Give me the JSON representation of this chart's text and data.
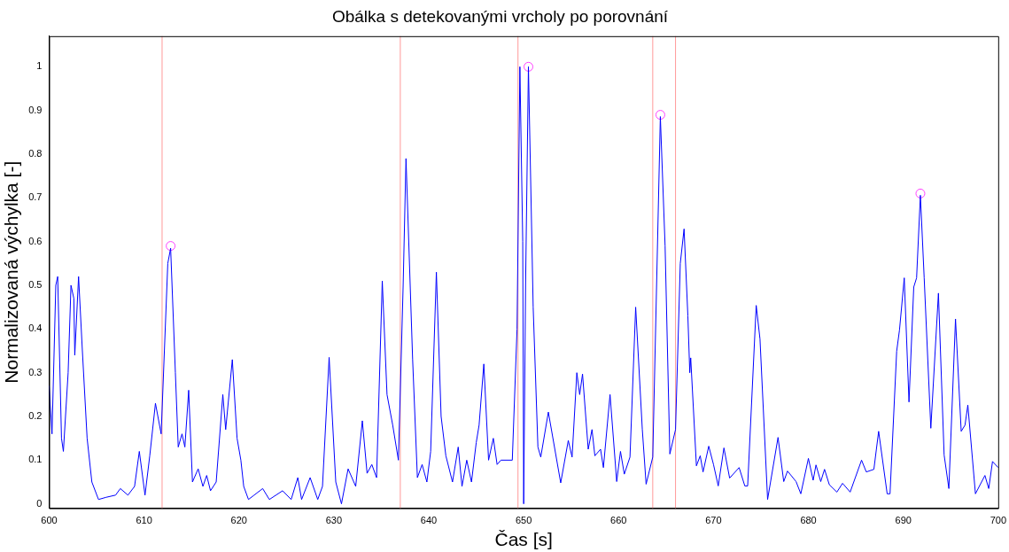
{
  "chart_data": {
    "type": "line",
    "title": "Obálka s detekovanými vrcholy po porovnání",
    "xlabel": "Čas [s]",
    "ylabel": "Normalizovaná výchylka [-]",
    "xlim": [
      600,
      700
    ],
    "xticks": [
      600,
      610,
      620,
      630,
      640,
      650,
      660,
      670,
      680,
      690,
      700
    ],
    "ylim": [
      -0.01,
      1.07
    ],
    "yticks": [
      0,
      0.1,
      0.2,
      0.3,
      0.4,
      0.5,
      0.6,
      0.7,
      0.8,
      0.9,
      1
    ],
    "grid": false,
    "legend": false,
    "marker": "none",
    "line_style": "solid",
    "series": [
      {
        "color": "#0000ff",
        "x": [
          600,
          600.3,
          600.7,
          600.9,
          601.3,
          601.5,
          602,
          602.3,
          602.6,
          602.7,
          603.1,
          603.5,
          604,
          604.5,
          605.2,
          606,
          607,
          607.5,
          608.3,
          609,
          609.5,
          610.1,
          610.6,
          611.2,
          611.8,
          612.5,
          612.8,
          613.3,
          613.6,
          614,
          614.3,
          614.7,
          615.1,
          615.7,
          616.2,
          616.6,
          617,
          617.6,
          618.3,
          618.6,
          619.3,
          619.8,
          620.2,
          620.5,
          621,
          621.6,
          622.5,
          623.2,
          624.6,
          625.5,
          626.2,
          626.6,
          627.5,
          628.3,
          628.8,
          629.5,
          630.2,
          630.8,
          631.5,
          632.3,
          633,
          633.5,
          634,
          634.5,
          635.1,
          635.6,
          636.2,
          636.8,
          637.3,
          637.6,
          638.3,
          638.8,
          639.3,
          639.8,
          640.2,
          640.8,
          641.3,
          641.8,
          642.5,
          643.1,
          643.5,
          644,
          644.5,
          645,
          645.3,
          645.8,
          646.3,
          646.8,
          647.2,
          647.6,
          648.8,
          649.3,
          649.6,
          649.9,
          650,
          650.2,
          650.5,
          651,
          651.5,
          651.8,
          652.6,
          653.9,
          654.7,
          655.1,
          655.6,
          655.9,
          656.2,
          656.8,
          657.2,
          657.5,
          658.1,
          658.4,
          659.1,
          659.8,
          660.2,
          660.6,
          661.2,
          661.8,
          662.5,
          662.9,
          663.6,
          664.4,
          664.9,
          665.4,
          666,
          666.5,
          666.9,
          667.3,
          667.5,
          667.6,
          668.2,
          668.6,
          668.9,
          669.5,
          670,
          670.5,
          671.1,
          671.7,
          672.7,
          673.3,
          673.6,
          674.5,
          674.9,
          675.7,
          676.8,
          677.4,
          677.8,
          678.7,
          679.2,
          680,
          680.5,
          680.8,
          681.3,
          681.7,
          682.2,
          683,
          683.6,
          684.4,
          685.6,
          686.1,
          686.9,
          687.4,
          688.3,
          688.6,
          689.3,
          689.6,
          690.1,
          690.6,
          691.1,
          691.4,
          691.8,
          692.2,
          692.9,
          693.7,
          694.3,
          694.8,
          695.5,
          696.1,
          696.5,
          696.8,
          697.6,
          698.6,
          699,
          699.4,
          700
        ],
        "values": [
          0.27,
          0.16,
          0.5,
          0.52,
          0.15,
          0.12,
          0.3,
          0.5,
          0.47,
          0.34,
          0.52,
          0.35,
          0.15,
          0.05,
          0.01,
          0.015,
          0.02,
          0.035,
          0.02,
          0.04,
          0.12,
          0.02,
          0.11,
          0.23,
          0.16,
          0.55,
          0.585,
          0.3,
          0.13,
          0.16,
          0.13,
          0.26,
          0.05,
          0.08,
          0.04,
          0.065,
          0.03,
          0.05,
          0.25,
          0.17,
          0.33,
          0.15,
          0.1,
          0.04,
          0.01,
          0.02,
          0.035,
          0.01,
          0.03,
          0.01,
          0.06,
          0.01,
          0.06,
          0.01,
          0.04,
          0.335,
          0.05,
          0,
          0.08,
          0.04,
          0.19,
          0.07,
          0.09,
          0.06,
          0.51,
          0.25,
          0.18,
          0.1,
          0.5,
          0.79,
          0.33,
          0.06,
          0.09,
          0.05,
          0.12,
          0.53,
          0.2,
          0.11,
          0.05,
          0.13,
          0.04,
          0.1,
          0.05,
          0.14,
          0.18,
          0.32,
          0.1,
          0.15,
          0.09,
          0.1,
          0.1,
          0.4,
          1,
          0.6,
          0,
          0.5,
          1,
          0.45,
          0.13,
          0.107,
          0.21,
          0.048,
          0.145,
          0.107,
          0.3,
          0.25,
          0.297,
          0.125,
          0.17,
          0.11,
          0.125,
          0.083,
          0.25,
          0.051,
          0.12,
          0.068,
          0.107,
          0.45,
          0.17,
          0.045,
          0.107,
          0.886,
          0.59,
          0.114,
          0.17,
          0.55,
          0.629,
          0.43,
          0.3,
          0.334,
          0.087,
          0.11,
          0.073,
          0.132,
          0.09,
          0.041,
          0.128,
          0.059,
          0.083,
          0.041,
          0.041,
          0.454,
          0.377,
          0.01,
          0.152,
          0.051,
          0.075,
          0.051,
          0.023,
          0.104,
          0.054,
          0.089,
          0.051,
          0.079,
          0.044,
          0.027,
          0.047,
          0.027,
          0.1,
          0.073,
          0.079,
          0.166,
          0.023,
          0.023,
          0.349,
          0.398,
          0.517,
          0.233,
          0.496,
          0.517,
          0.706,
          0.517,
          0.173,
          0.482,
          0.112,
          0.035,
          0.423,
          0.166,
          0.18,
          0.226,
          0.023,
          0.065,
          0.035,
          0.097,
          0.083
        ]
      },
      {
        "type": "scatter",
        "color": "#ff40ff",
        "marker": "circle",
        "x": [
          612.8,
          650.5,
          664.4,
          691.8
        ],
        "values": [
          0.59,
          1,
          0.89,
          0.71
        ]
      }
    ],
    "ref_lines": [
      {
        "axis": "x",
        "value": 611.9,
        "color": "#ff9999"
      },
      {
        "axis": "x",
        "value": 637,
        "color": "#ff9999"
      },
      {
        "axis": "x",
        "value": 649.4,
        "color": "#ff9999"
      },
      {
        "axis": "x",
        "value": 663.6,
        "color": "#ff9999"
      },
      {
        "axis": "x",
        "value": 666,
        "color": "#ff9999"
      }
    ]
  }
}
